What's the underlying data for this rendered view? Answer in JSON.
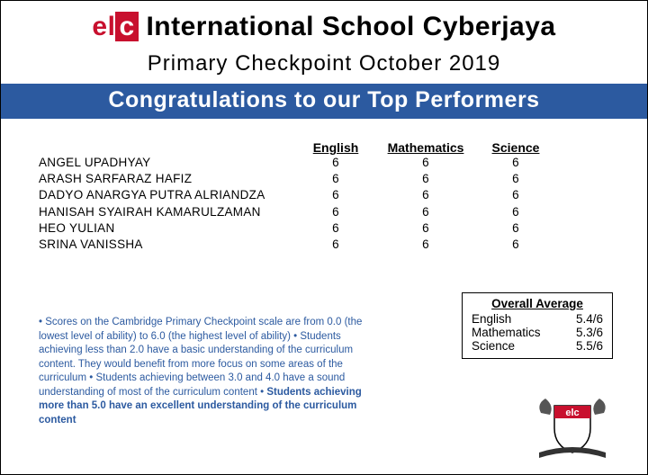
{
  "logo": {
    "e": "e",
    "l": "l",
    "c": "c"
  },
  "school_name": "International School Cyberjaya",
  "subtitle": "Primary Checkpoint October 2019",
  "banner": "Congratulations to our Top Performers",
  "table": {
    "headers": {
      "english": "English",
      "math": "Mathematics",
      "science": "Science"
    },
    "rows": [
      {
        "name": "ANGEL UPADHYAY",
        "english": "6",
        "math": "6",
        "science": "6"
      },
      {
        "name": "ARASH SARFARAZ HAFIZ",
        "english": "6",
        "math": "6",
        "science": "6"
      },
      {
        "name": "DADYO ANARGYA PUTRA ALRIANDZA",
        "english": "6",
        "math": "6",
        "science": "6"
      },
      {
        "name": "HANISAH SYAIRAH KAMARULZAMAN",
        "english": "6",
        "math": "6",
        "science": "6"
      },
      {
        "name": "HEO YULIAN",
        "english": "6",
        "math": "6",
        "science": "6"
      },
      {
        "name": "SRINA VANISSHA",
        "english": "6",
        "math": "6",
        "science": "6"
      }
    ]
  },
  "footnote": {
    "part1": "• Scores on the Cambridge Primary Checkpoint scale are from 0.0 (the lowest level of ability) to 6.0 (the highest level of ability) • Students achieving less than 2.0 have a basic understanding of the curriculum content. They would benefit from more focus on some areas of the curriculum • Students achieving between 3.0 and 4.0 have a sound understanding of most of the curriculum content • ",
    "bold": "Students achieving more than 5.0 have an excellent understanding of the curriculum content"
  },
  "average": {
    "title": "Overall Average",
    "rows": [
      {
        "label": "English",
        "val": "5.4/6"
      },
      {
        "label": "Mathematics",
        "val": "5.3/6"
      },
      {
        "label": "Science",
        "val": "5.5/6"
      }
    ]
  },
  "colors": {
    "banner_bg": "#2c5aa0",
    "accent_red": "#c8102e",
    "footnote_color": "#2c5aa0"
  }
}
